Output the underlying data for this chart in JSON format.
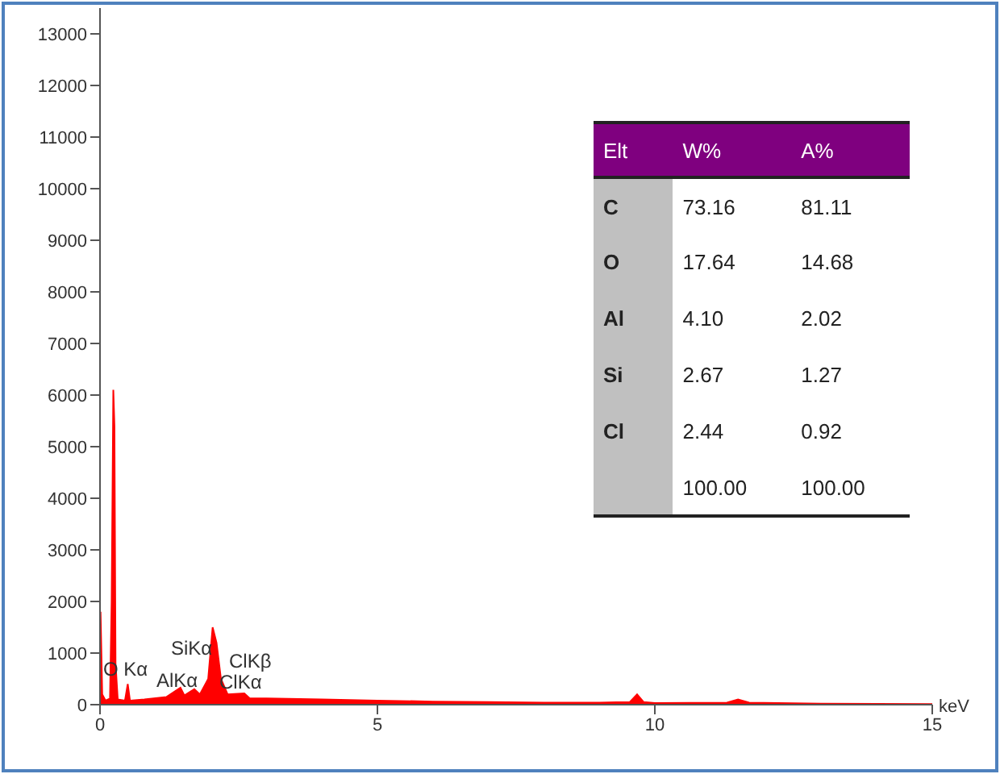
{
  "chart_data": {
    "type": "area",
    "xlabel": "keV",
    "x": [
      0,
      0.01,
      0.04,
      0.1,
      0.18,
      0.21,
      0.24,
      0.26,
      0.28,
      0.32,
      0.45,
      0.5,
      0.54,
      0.8,
      1.2,
      1.45,
      1.52,
      1.7,
      1.8,
      1.95,
      2.03,
      2.1,
      2.18,
      2.3,
      2.6,
      2.7,
      3,
      4,
      5,
      6,
      7,
      8,
      9,
      9.55,
      9.68,
      9.8,
      10,
      11.3,
      11.5,
      11.7,
      13,
      15
    ],
    "series": [
      {
        "color": "#ff0000",
        "values": [
          0,
          1800,
          200,
          80,
          120,
          2000,
          6100,
          5400,
          800,
          100,
          80,
          400,
          80,
          100,
          150,
          330,
          180,
          300,
          200,
          500,
          1500,
          1200,
          500,
          200,
          220,
          120,
          120,
          100,
          80,
          60,
          50,
          40,
          40,
          50,
          200,
          50,
          30,
          40,
          100,
          40,
          20,
          10
        ]
      }
    ],
    "xlim": [
      0,
      15
    ],
    "xticks": [
      0,
      5,
      10,
      15
    ],
    "ylim": [
      0,
      13500
    ],
    "yticks": [
      0,
      1000,
      2000,
      3000,
      4000,
      5000,
      6000,
      7000,
      8000,
      9000,
      10000,
      11000,
      12000,
      13000
    ],
    "grid": false,
    "legend": false,
    "annotations": [
      "O Kα",
      "AlKα",
      "SiKα",
      "ClKβ",
      "ClKα",
      "Elt",
      "W%",
      "A%",
      "C",
      "73.16",
      "81.11",
      "O",
      "17.64",
      "14.68",
      "Al",
      "4.10",
      "2.02",
      "Si",
      "2.67",
      "1.27",
      "Cl",
      "2.44",
      "0.92",
      "100.00",
      "100.00"
    ]
  }
}
